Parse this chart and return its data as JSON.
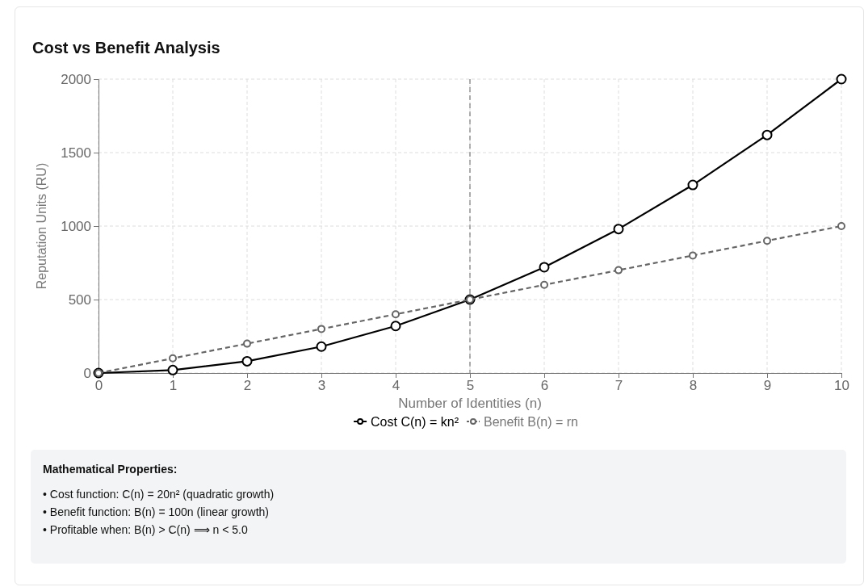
{
  "chart_data": {
    "type": "line",
    "title": "Cost vs Benefit Analysis",
    "xlabel": "Number of Identities (n)",
    "ylabel": "Reputation Units (RU)",
    "x": [
      0,
      1,
      2,
      3,
      4,
      5,
      6,
      7,
      8,
      9,
      10
    ],
    "series": [
      {
        "name": "Cost C(n) = kn²",
        "color": "#000000",
        "line_style": "solid",
        "values": [
          0,
          20,
          80,
          180,
          320,
          500,
          720,
          980,
          1280,
          1620,
          2000
        ]
      },
      {
        "name": "Benefit B(n) = rn",
        "color": "#666666",
        "line_style": "dashed",
        "values": [
          0,
          100,
          200,
          300,
          400,
          500,
          600,
          700,
          800,
          900,
          1000
        ]
      }
    ],
    "xlim": [
      0,
      10
    ],
    "xticks": [
      0,
      1,
      2,
      3,
      4,
      5,
      6,
      7,
      8,
      9,
      10
    ],
    "ylim": [
      0,
      2000
    ],
    "yticks": [
      0,
      500,
      1000,
      1500,
      2000
    ],
    "grid": true,
    "legend": "bottom",
    "marker": "circle",
    "ref_lines": [
      {
        "axis": "x",
        "value": 5,
        "color": "#666666",
        "line_style": "dashed"
      }
    ],
    "annotations": [
      "Mathematical Properties:",
      "• Cost function: C(n) = 20n² (quadratic growth)",
      "• Benefit function: B(n) = 100n (linear growth)",
      "• Profitable when: B(n) > C(n) ⟹ n < 5.0"
    ]
  }
}
